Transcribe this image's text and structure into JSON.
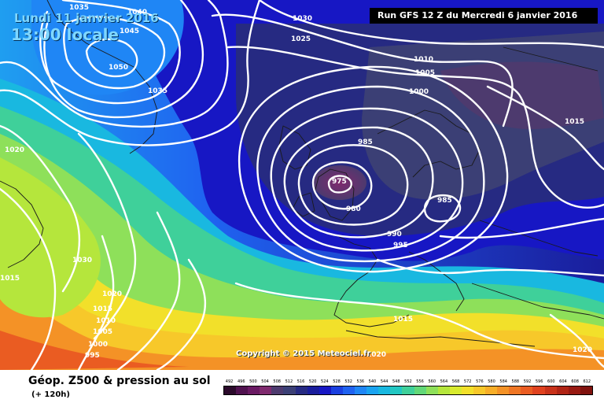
{
  "header": {
    "date": "Lundi 11 janvier 2016",
    "time": "13:00 locale",
    "run": "Run GFS 12 Z du Mercredi 6 janvier 2016"
  },
  "copyright": "Copyright © 2015 Meteociel.fr",
  "legend": {
    "title": "Géop. Z500 & pression au sol",
    "subtitle": "(+ 120h)",
    "ticks": [
      "492",
      "496",
      "500",
      "504",
      "508",
      "512",
      "516",
      "520",
      "524",
      "528",
      "532",
      "536",
      "540",
      "544",
      "548",
      "552",
      "556",
      "560",
      "564",
      "568",
      "572",
      "576",
      "580",
      "584",
      "588",
      "592",
      "596",
      "600",
      "604",
      "608",
      "612"
    ],
    "colors": [
      "#2b0a2b",
      "#50124f",
      "#6a1a63",
      "#7f2a6e",
      "#4d3a6e",
      "#3b3f75",
      "#262a82",
      "#1a1d9c",
      "#1717c4",
      "#1a3fe0",
      "#1f62f0",
      "#1f86f5",
      "#1aa3f0",
      "#19b8e0",
      "#22c7c2",
      "#3fd09a",
      "#62d878",
      "#8ee05a",
      "#b5e63c",
      "#d8ea2e",
      "#f2e02a",
      "#f7c82a",
      "#f7ae28",
      "#f49226",
      "#ef7624",
      "#ea5c22",
      "#e0421f",
      "#c8321a",
      "#b02415",
      "#981a12",
      "#80120e"
    ]
  },
  "map": {
    "pressure_labels": [
      "1035",
      "1040",
      "1045",
      "1050",
      "1030",
      "1025",
      "1035",
      "1010",
      "1005",
      "1000",
      "985",
      "975",
      "980",
      "985",
      "990",
      "995",
      "1015",
      "1020",
      "1030",
      "1020",
      "1015",
      "1010",
      "1005",
      "1000",
      "995",
      "1015",
      "1020",
      "1020",
      "1015",
      "1030"
    ]
  }
}
